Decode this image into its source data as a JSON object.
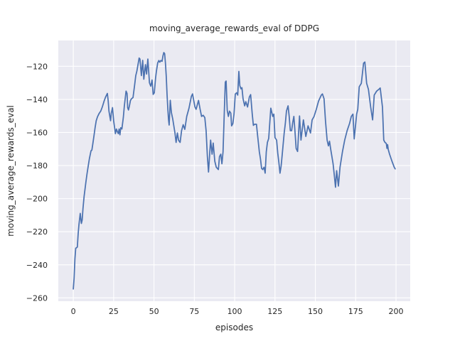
{
  "figure": {
    "title": "moving_average_rewards_eval of DDPG",
    "background_color": "#ffffff"
  },
  "chart_data": {
    "type": "line",
    "title": "moving_average_rewards_eval of DDPG",
    "xlabel": "episodes",
    "ylabel": "moving_average_rewards_eval",
    "xlim": [
      -9.3,
      208.8
    ],
    "ylim": [
      -262.0,
      -104.4
    ],
    "grid": true,
    "legend": "none",
    "style": {
      "axes_background": "#EAEAF2",
      "grid_color": "#FFFFFF",
      "line_color": "#4C72B0",
      "text_color": "#262626",
      "line_width": 1.75
    },
    "xticks": {
      "values": [
        0,
        25,
        50,
        75,
        100,
        125,
        150,
        175,
        200
      ],
      "labels": [
        "0",
        "25",
        "50",
        "75",
        "100",
        "125",
        "150",
        "175",
        "200"
      ]
    },
    "yticks": {
      "values": [
        -120,
        -140,
        -160,
        -180,
        -200,
        -220,
        -240,
        -260
      ],
      "labels": [
        "−120",
        "−140",
        "−160",
        "−180",
        "−200",
        "−220",
        "−240",
        "−260"
      ]
    },
    "series": [
      {
        "name": "moving_average_rewards_eval",
        "x": [
          0,
          0.5,
          1,
          1.5,
          2.5,
          3,
          3.5,
          4.3,
          5,
          5.5,
          6,
          6.7,
          7.8,
          8.5,
          9.3,
          10,
          11,
          11.5,
          12,
          12.8,
          13.5,
          14.2,
          15,
          16,
          17,
          18,
          19.2,
          20,
          21.1,
          21.6,
          22.1,
          23.1,
          23.5,
          24.3,
          25,
          25.7,
          26.1,
          26.7,
          27.3,
          27.9,
          28.4,
          28.9,
          29.4,
          30.1,
          31,
          31.6,
          32.7,
          33.3,
          33.7,
          34.2,
          34.7,
          35.4,
          36,
          37,
          38,
          38.7,
          39.4,
          40.8,
          41.3,
          42.2,
          43,
          43.7,
          44.7,
          45.4,
          46.2,
          47.2,
          48,
          48.8,
          49.5,
          50.2,
          51,
          51.5,
          52.3,
          53,
          53.6,
          54.3,
          55,
          55.6,
          56.1,
          56.6,
          57.1,
          57.6,
          58.1,
          58.6,
          59,
          59.4,
          60.1,
          60.8,
          61.6,
          63,
          63.7,
          64.5,
          65.2,
          66.2,
          67.1,
          68.1,
          69.1,
          70.3,
          71.7,
          73.2,
          73.9,
          74.7,
          75.4,
          76.1,
          76.9,
          77.6,
          78.6,
          79.5,
          80.5,
          81.5,
          82.3,
          83.1,
          83.8,
          84.6,
          85.1,
          86,
          86.7,
          87.7,
          88.6,
          89.9,
          90.6,
          91.4,
          92.1,
          92.8,
          93.5,
          94.2,
          94.7,
          95.4,
          96.1,
          96.8,
          97.6,
          98.1,
          98.9,
          99.6,
          100.4,
          101.2,
          101.9,
          102.6,
          103.2,
          103.9,
          104.5,
          105.2,
          106.2,
          106.9,
          108,
          109.1,
          109.9,
          110.9,
          111.6,
          112.4,
          113.5,
          114.2,
          115.3,
          116,
          116.7,
          117.4,
          118.2,
          118.9,
          119.6,
          120.3,
          121.1,
          122.4,
          123.6,
          124.3,
          125,
          126,
          126.7,
          127.4,
          128.1,
          128.8,
          129.5,
          130.7,
          131.4,
          132.1,
          133.1,
          133.8,
          134.5,
          135.3,
          136,
          136.7,
          137.4,
          138.1,
          139,
          140.2,
          141.1,
          142.6,
          144.1,
          145.5,
          147,
          148,
          149.2,
          150.6,
          152,
          153.7,
          154.4,
          155.4,
          156.3,
          157.3,
          158.1,
          158.8,
          159.5,
          161,
          161.7,
          162.5,
          163.2,
          164.3,
          165.3,
          166.8,
          168.2,
          169.7,
          171.2,
          172.3,
          173.3,
          174.1,
          175.6,
          176.3,
          177.2,
          178.5,
          179.9,
          180.7,
          181.8,
          182.9,
          184.3,
          185.5,
          186.5,
          188,
          189.4,
          190.2,
          191.6,
          192.4,
          193.1,
          194,
          194.4,
          194.8,
          195.2,
          196,
          197.5,
          198.9,
          199.5
        ],
        "y": [
          -254.6,
          -248,
          -236.5,
          -230,
          -229.3,
          -221.4,
          -215.7,
          -208.9,
          -215,
          -212.9,
          -206,
          -198.6,
          -190,
          -185,
          -180,
          -175.7,
          -171,
          -170.7,
          -167.5,
          -162.1,
          -157.1,
          -152.9,
          -150.5,
          -148.5,
          -147.1,
          -144.5,
          -140.7,
          -138.6,
          -136.4,
          -140.7,
          -147.1,
          -152.9,
          -148.6,
          -145,
          -152.9,
          -157.9,
          -160.7,
          -157.9,
          -159.5,
          -160.7,
          -157.9,
          -161.4,
          -157.1,
          -157.9,
          -151,
          -144.3,
          -135,
          -136.4,
          -145,
          -146.4,
          -144.3,
          -140.7,
          -139.7,
          -138.9,
          -131.4,
          -125.7,
          -122.9,
          -115,
          -115.6,
          -125.6,
          -116.4,
          -127.8,
          -119,
          -124.7,
          -115.6,
          -130,
          -132,
          -128.3,
          -137,
          -136,
          -127,
          -123,
          -118,
          -116.5,
          -117.5,
          -116.5,
          -117,
          -113.5,
          -111.7,
          -112.3,
          -118,
          -126,
          -137,
          -146,
          -152,
          -155.5,
          -140.5,
          -148,
          -151.7,
          -160.3,
          -166,
          -160.3,
          -164.6,
          -166,
          -158.9,
          -155.3,
          -158.1,
          -150.3,
          -145.3,
          -138.1,
          -136.7,
          -141,
          -144.6,
          -146,
          -143.1,
          -140.6,
          -146,
          -150.3,
          -149.6,
          -151,
          -158.9,
          -174.6,
          -183.9,
          -171.7,
          -164.6,
          -173.1,
          -166.4,
          -177.4,
          -181,
          -182.4,
          -174.6,
          -173.1,
          -178.9,
          -171.7,
          -150.3,
          -129.6,
          -128.9,
          -146.7,
          -150.3,
          -147.1,
          -148.3,
          -156,
          -154.6,
          -148.9,
          -136.7,
          -136,
          -137.4,
          -123.1,
          -131.7,
          -133.6,
          -132.9,
          -139.6,
          -143.9,
          -141.4,
          -144.6,
          -138.6,
          -137.1,
          -148.9,
          -155.7,
          -155,
          -155,
          -161.7,
          -171.7,
          -176,
          -181.7,
          -182.4,
          -181,
          -184.6,
          -171.7,
          -166,
          -163.6,
          -145.3,
          -150.3,
          -148.9,
          -163.1,
          -164.6,
          -172.4,
          -178.1,
          -184.6,
          -180.3,
          -173.1,
          -160.3,
          -154.6,
          -147.1,
          -143.9,
          -150.3,
          -158.9,
          -158.9,
          -153.9,
          -150.3,
          -159.6,
          -169.6,
          -171.5,
          -150,
          -164.6,
          -152.4,
          -162.4,
          -156,
          -160.3,
          -152.4,
          -150.3,
          -146,
          -141,
          -137.4,
          -136.7,
          -139.6,
          -153.1,
          -164.6,
          -168.1,
          -165.3,
          -170,
          -178.9,
          -185.3,
          -193.1,
          -183.1,
          -192.4,
          -181,
          -171.7,
          -164.6,
          -158.9,
          -154.6,
          -150.3,
          -148.9,
          -163.9,
          -148.9,
          -146,
          -132.4,
          -130.3,
          -118.1,
          -117.4,
          -130.3,
          -133.9,
          -144.6,
          -152.4,
          -137.4,
          -135,
          -133.9,
          -133.1,
          -144.6,
          -164.6,
          -165.9,
          -166.7,
          -169.6,
          -167.4,
          -170.3,
          -173.1,
          -177.4,
          -181,
          -182
        ]
      }
    ]
  }
}
